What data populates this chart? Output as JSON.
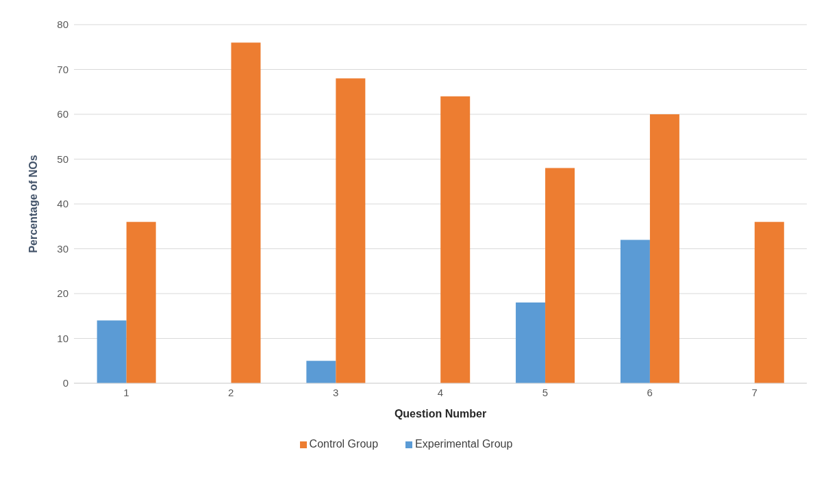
{
  "chart_data": {
    "type": "bar",
    "xlabel": "Question Number",
    "ylabel": "Percentage of NOs",
    "categories": [
      "1",
      "2",
      "3",
      "4",
      "5",
      "6",
      "7"
    ],
    "series": [
      {
        "name": "Experimental Group",
        "color": "#5b9bd5",
        "values": [
          14,
          0,
          5,
          0,
          18,
          32,
          0
        ]
      },
      {
        "name": "Control Group",
        "color": "#ed7d31",
        "values": [
          36,
          76,
          68,
          64,
          48,
          60,
          36
        ]
      }
    ],
    "ylim": [
      0,
      80
    ],
    "yticks": [
      0,
      10,
      20,
      30,
      40,
      50,
      60,
      70,
      80
    ],
    "grid": "y",
    "legend": "bottom"
  }
}
